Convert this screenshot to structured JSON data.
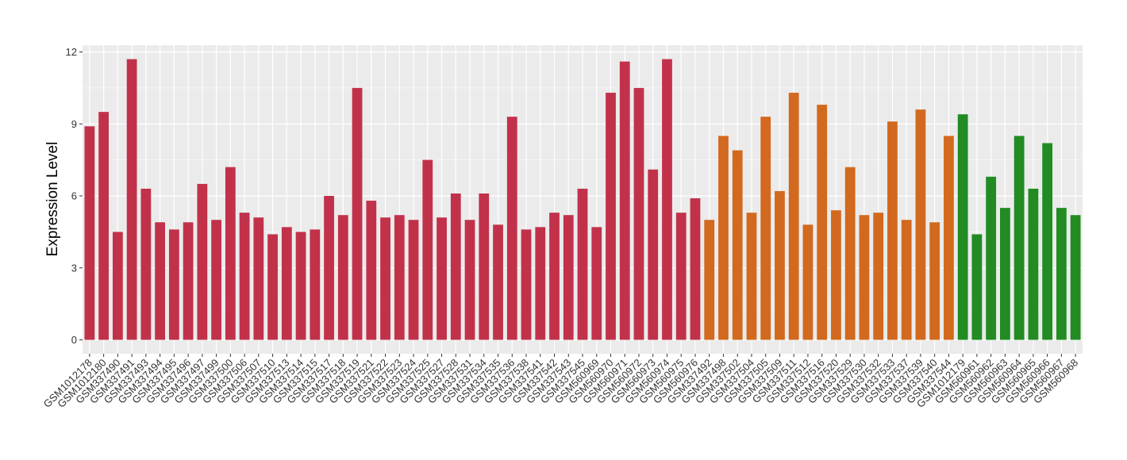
{
  "chart_data": {
    "type": "bar",
    "title": "",
    "xlabel": "",
    "ylabel": "Expression Level",
    "ylim": [
      0,
      12
    ],
    "yticks": [
      0,
      3,
      6,
      9,
      12
    ],
    "grid": true,
    "legend": "none",
    "background": "#ebebeb",
    "gridline_color": "#ffffff",
    "series_colors": [
      "#c2314a",
      "#d2691e",
      "#228b22"
    ],
    "categories": [
      "GSM1012178",
      "GSM1012180",
      "GSM337490",
      "GSM337491",
      "GSM337493",
      "GSM337494",
      "GSM337495",
      "GSM337496",
      "GSM337497",
      "GSM337499",
      "GSM337500",
      "GSM337506",
      "GSM337507",
      "GSM337510",
      "GSM337513",
      "GSM337514",
      "GSM337515",
      "GSM337517",
      "GSM337518",
      "GSM337519",
      "GSM337521",
      "GSM337522",
      "GSM337523",
      "GSM337524",
      "GSM337525",
      "GSM337527",
      "GSM337528",
      "GSM337531",
      "GSM337534",
      "GSM337535",
      "GSM337536",
      "GSM337538",
      "GSM337541",
      "GSM337542",
      "GSM337543",
      "GSM337545",
      "GSM560969",
      "GSM560970",
      "GSM560971",
      "GSM560972",
      "GSM560973",
      "GSM560974",
      "GSM560975",
      "GSM560976",
      "GSM337492",
      "GSM337498",
      "GSM337502",
      "GSM337504",
      "GSM337505",
      "GSM337509",
      "GSM337511",
      "GSM337512",
      "GSM337516",
      "GSM337520",
      "GSM337529",
      "GSM337530",
      "GSM337532",
      "GSM337533",
      "GSM337537",
      "GSM337539",
      "GSM337540",
      "GSM337544",
      "GSM1012179",
      "GSM560961",
      "GSM560962",
      "GSM560963",
      "GSM560964",
      "GSM560965",
      "GSM560966",
      "GSM560967",
      "GSM560968"
    ],
    "values": [
      8.9,
      9.5,
      4.5,
      11.7,
      6.3,
      4.9,
      4.6,
      4.9,
      6.5,
      5.0,
      7.2,
      5.3,
      5.1,
      4.4,
      4.7,
      4.5,
      4.6,
      6.0,
      5.2,
      10.5,
      5.8,
      5.1,
      5.2,
      5.0,
      7.5,
      5.1,
      6.1,
      5.0,
      6.1,
      4.8,
      9.3,
      4.6,
      4.7,
      5.3,
      5.2,
      6.3,
      4.7,
      10.3,
      11.6,
      10.5,
      7.1,
      11.7,
      5.3,
      5.9,
      5.0,
      8.5,
      7.9,
      5.3,
      9.3,
      6.2,
      10.3,
      4.8,
      9.8,
      5.4,
      7.2,
      5.2,
      5.3,
      9.1,
      5.0,
      9.6,
      4.9,
      8.5,
      9.4,
      4.4,
      6.8,
      5.5,
      8.5,
      6.3,
      8.2,
      5.5,
      5.2
    ],
    "groups": [
      0,
      0,
      0,
      0,
      0,
      0,
      0,
      0,
      0,
      0,
      0,
      0,
      0,
      0,
      0,
      0,
      0,
      0,
      0,
      0,
      0,
      0,
      0,
      0,
      0,
      0,
      0,
      0,
      0,
      0,
      0,
      0,
      0,
      0,
      0,
      0,
      0,
      0,
      0,
      0,
      0,
      0,
      0,
      0,
      1,
      1,
      1,
      1,
      1,
      1,
      1,
      1,
      1,
      1,
      1,
      1,
      1,
      1,
      1,
      1,
      1,
      1,
      2,
      2,
      2,
      2,
      2,
      2,
      2,
      2,
      2
    ]
  }
}
